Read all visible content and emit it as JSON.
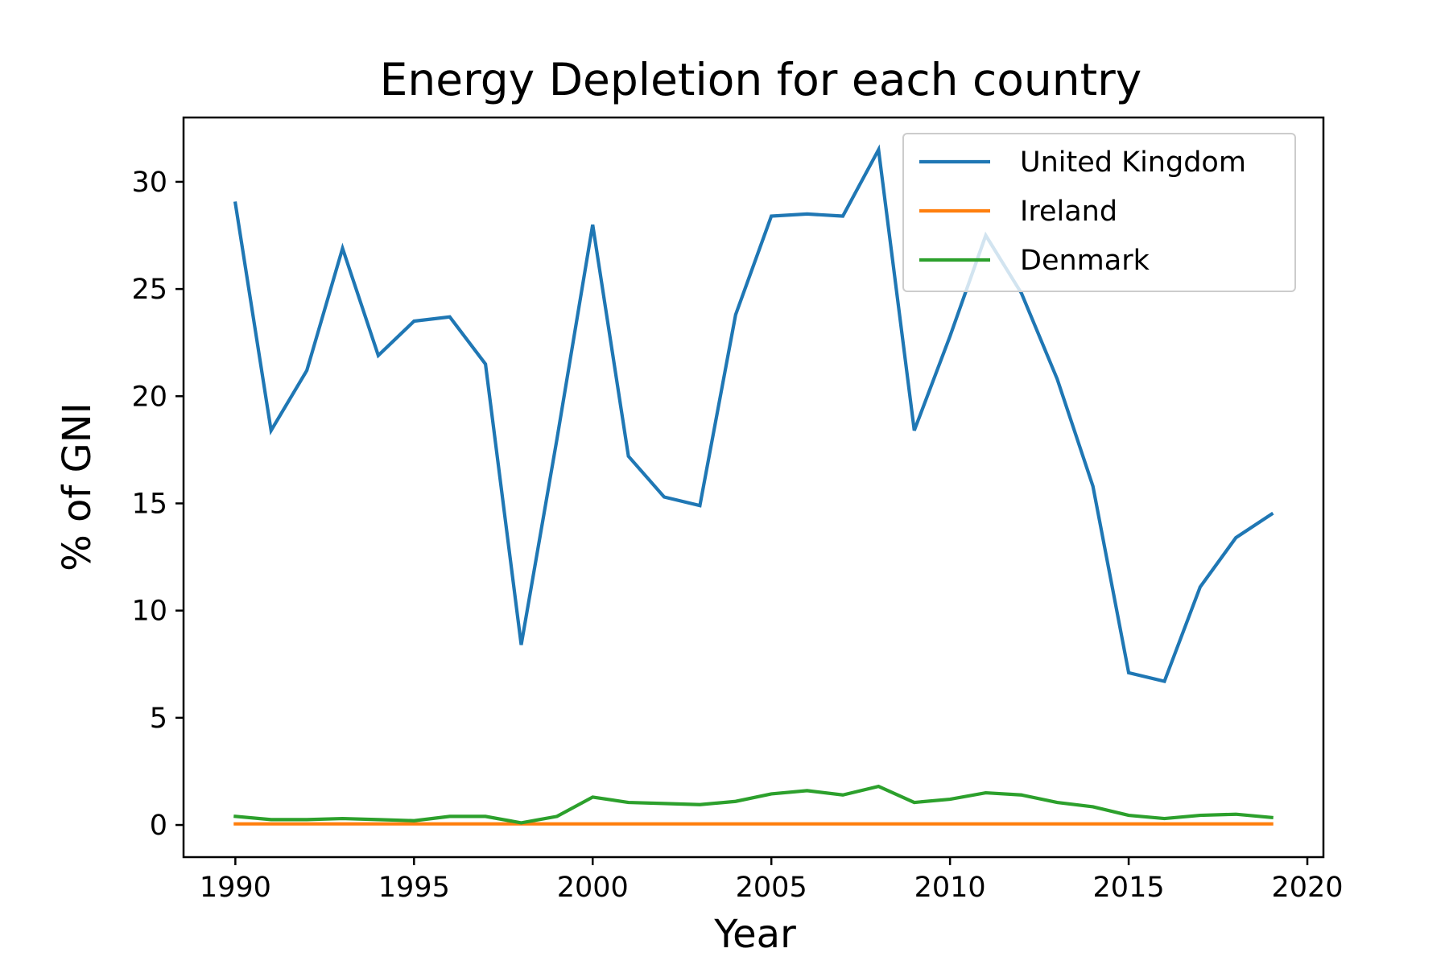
{
  "chart_data": {
    "type": "line",
    "title": "Energy Depletion for each country",
    "xlabel": "Year",
    "ylabel": "% of GNI",
    "xlim": [
      1988.55,
      2020.45
    ],
    "ylim": [
      -1.5,
      33.0
    ],
    "x_ticks": [
      1990,
      1995,
      2000,
      2005,
      2010,
      2015,
      2020
    ],
    "y_ticks": [
      0,
      5,
      10,
      15,
      20,
      25,
      30
    ],
    "grid": false,
    "legend_position": "top-right",
    "x": [
      1990,
      1991,
      1992,
      1993,
      1994,
      1995,
      1996,
      1997,
      1998,
      1999,
      2000,
      2001,
      2002,
      2003,
      2004,
      2005,
      2006,
      2007,
      2008,
      2009,
      2010,
      2011,
      2012,
      2013,
      2014,
      2015,
      2016,
      2017,
      2018,
      2019
    ],
    "series": [
      {
        "name": "United Kingdom",
        "color": "#1f77b4",
        "values": [
          29.0,
          18.4,
          21.2,
          26.9,
          21.9,
          23.5,
          23.7,
          21.5,
          8.4,
          18.0,
          28.0,
          17.2,
          15.3,
          14.9,
          23.8,
          28.4,
          28.5,
          28.4,
          31.5,
          18.4,
          22.8,
          27.5,
          24.8,
          20.8,
          15.8,
          7.1,
          6.7,
          11.1,
          13.4,
          14.5
        ]
      },
      {
        "name": "Ireland",
        "color": "#ff7f0e",
        "values": [
          0.05,
          0.05,
          0.05,
          0.05,
          0.05,
          0.05,
          0.05,
          0.05,
          0.05,
          0.05,
          0.05,
          0.05,
          0.05,
          0.05,
          0.05,
          0.05,
          0.05,
          0.05,
          0.05,
          0.05,
          0.05,
          0.05,
          0.05,
          0.05,
          0.05,
          0.05,
          0.05,
          0.05,
          0.05,
          0.05
        ]
      },
      {
        "name": "Denmark",
        "color": "#2ca02c",
        "values": [
          0.4,
          0.25,
          0.25,
          0.3,
          0.25,
          0.2,
          0.4,
          0.4,
          0.1,
          0.4,
          1.3,
          1.05,
          1.0,
          0.95,
          1.1,
          1.45,
          1.6,
          1.4,
          1.8,
          1.05,
          1.2,
          1.5,
          1.4,
          1.05,
          0.85,
          0.45,
          0.3,
          0.45,
          0.5,
          0.35
        ]
      }
    ]
  }
}
